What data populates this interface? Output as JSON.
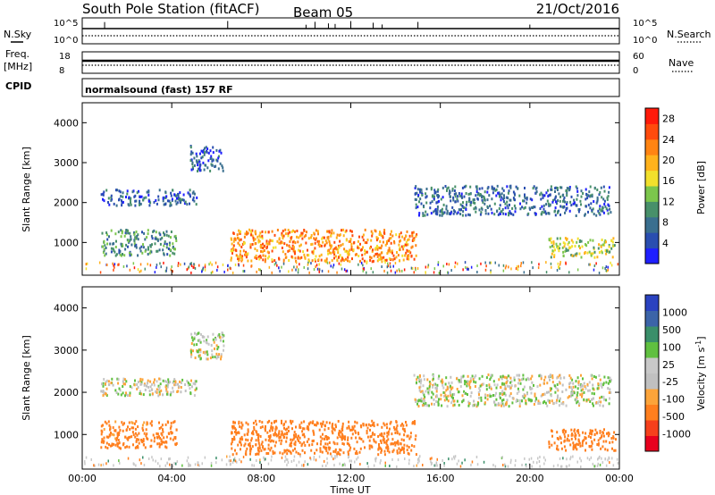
{
  "header": {
    "station": "South Pole Station (fitACF)",
    "beam": "Beam 05",
    "date": "21/Oct/2016"
  },
  "sky_panel": {
    "left_label": "N.Sky",
    "right_label": "N.Search",
    "left_ticks": [
      "10^5",
      "10^0"
    ],
    "right_ticks": [
      "10^5",
      "10^0"
    ]
  },
  "freq_panel": {
    "left_label_line1": "Freq.",
    "left_label_line2": "[MHz]",
    "right_label": "Nave",
    "left_ticks": [
      "18",
      "8"
    ],
    "right_ticks": [
      "60",
      "0"
    ]
  },
  "cpid_panel": {
    "label": "CPID",
    "program": "normalsound (fast) 157 RF"
  },
  "colors": {
    "axis": "#000000",
    "power": [
      "#1f1fff",
      "#2a4eb0",
      "#3a6f8f",
      "#48906a",
      "#7cc64c",
      "#f2e02c",
      "#ffb21c",
      "#ff8412",
      "#ff4b0c",
      "#ff1a0a"
    ],
    "velocity": [
      "#e8001e",
      "#f6401c",
      "#ff7f1e",
      "#fca43a",
      "#c0c0c0",
      "#c8c8c8",
      "#60c040",
      "#3a8f6a",
      "#3c64a8",
      "#2a42c0"
    ]
  },
  "chart_data": [
    {
      "type": "heatmap",
      "title": "",
      "xlabel": "",
      "ylabel": "Slant Range [km]",
      "x_ticks": [
        "00:00",
        "04:00",
        "08:00",
        "12:00",
        "16:00",
        "20:00",
        "00:00"
      ],
      "xlim": [
        0,
        24
      ],
      "y_ticks": [
        1000,
        2000,
        3000,
        4000
      ],
      "ylim": [
        180,
        4500
      ],
      "colorbar": {
        "label": "Power [dB]",
        "ticks": [
          4,
          8,
          12,
          16,
          20,
          24,
          28
        ],
        "range": [
          0,
          30
        ]
      },
      "echo_regions": [
        {
          "t0": 0.8,
          "t1": 5.1,
          "r0": 1950,
          "r1": 2350,
          "power": 6
        },
        {
          "t0": 4.8,
          "t1": 6.3,
          "r0": 2800,
          "r1": 3450,
          "power": 6
        },
        {
          "t0": 0.8,
          "t1": 4.2,
          "r0": 700,
          "r1": 1350,
          "power": 10
        },
        {
          "t0": 6.6,
          "t1": 14.9,
          "r0": 550,
          "r1": 1350,
          "power": 22
        },
        {
          "t0": 14.8,
          "t1": 23.6,
          "r0": 1700,
          "r1": 2450,
          "power": 7
        },
        {
          "t0": 20.8,
          "t1": 23.8,
          "r0": 650,
          "r1": 1150,
          "power": 15
        }
      ]
    },
    {
      "type": "heatmap",
      "title": "",
      "xlabel": "Time UT",
      "ylabel": "Slant Range [km]",
      "x_ticks": [
        "00:00",
        "04:00",
        "08:00",
        "12:00",
        "16:00",
        "20:00",
        "00:00"
      ],
      "xlim": [
        0,
        24
      ],
      "y_ticks": [
        1000,
        2000,
        3000,
        4000
      ],
      "ylim": [
        180,
        4500
      ],
      "colorbar": {
        "label": "Velocity [m s^-1]",
        "ticks": [
          "1000",
          "500",
          "100",
          "25",
          "-25",
          "-100",
          "-500",
          "-1000"
        ]
      },
      "echo_regions": [
        {
          "t0": 0.8,
          "t1": 5.1,
          "r0": 1950,
          "r1": 2350,
          "velocity": 0
        },
        {
          "t0": 4.8,
          "t1": 6.3,
          "r0": 2800,
          "r1": 3450,
          "velocity": 10
        },
        {
          "t0": 0.8,
          "t1": 4.2,
          "r0": 700,
          "r1": 1350,
          "velocity": -150
        },
        {
          "t0": 6.6,
          "t1": 14.9,
          "r0": 550,
          "r1": 1350,
          "velocity": -200
        },
        {
          "t0": 14.8,
          "t1": 23.6,
          "r0": 1700,
          "r1": 2450,
          "velocity": 0
        },
        {
          "t0": 20.8,
          "t1": 23.8,
          "r0": 650,
          "r1": 1150,
          "velocity": -200
        }
      ]
    }
  ]
}
